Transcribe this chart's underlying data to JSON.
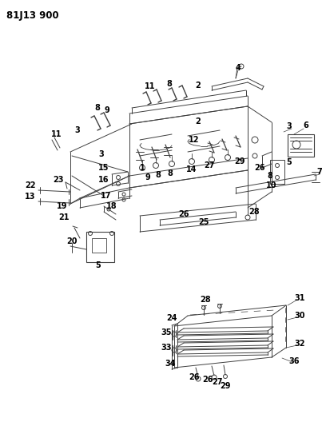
{
  "title": "81J13 900",
  "bg_color": "#ffffff",
  "line_color": "#404040",
  "text_color": "#000000",
  "title_fontsize": 8.5,
  "label_fontsize": 7.0,
  "figsize": [
    4.08,
    5.33
  ],
  "dpi": 100
}
